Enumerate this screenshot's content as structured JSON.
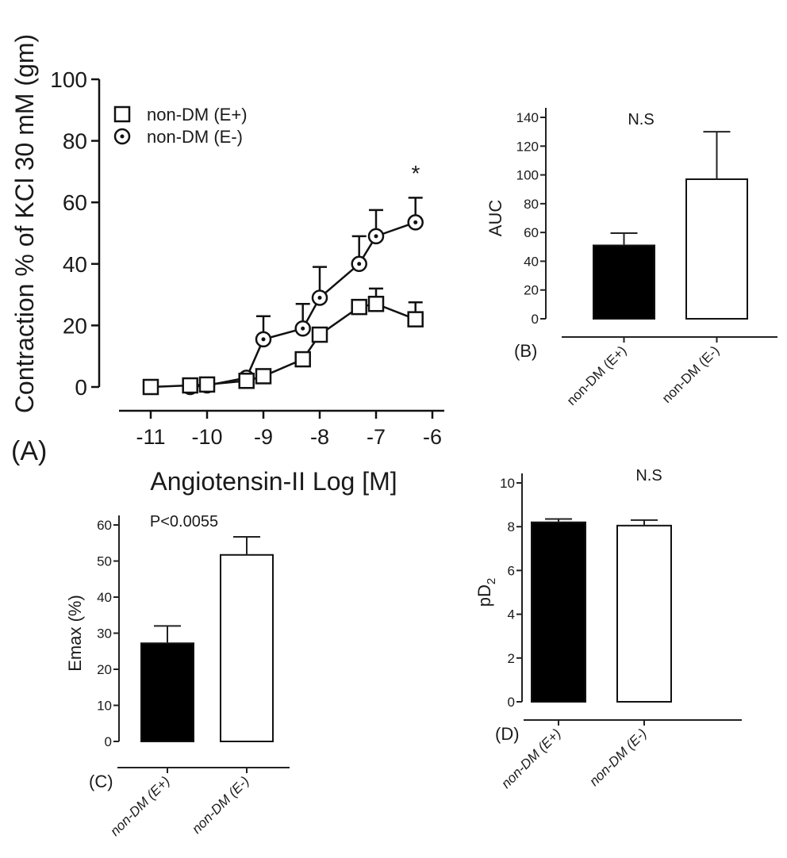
{
  "chart_data": [
    {
      "panel": "(A)",
      "type": "line",
      "xlabel": "Angiotensin-II Log [M]",
      "ylabel": "Contraction % of KCl 30 mM (gm)",
      "xlim": [
        -11.5,
        -6
      ],
      "ylim": [
        0,
        100
      ],
      "xticks": [
        -11,
        -10,
        -9,
        -8,
        -7,
        -6
      ],
      "yticks": [
        0,
        20,
        40,
        60,
        80,
        100
      ],
      "legend_position": "top-left",
      "annotation": "*",
      "series": [
        {
          "name": "non-DM (E+)",
          "marker": "open-square",
          "x": [
            -11,
            -10.3,
            -10,
            -9.3,
            -9,
            -8.3,
            -8,
            -7.3,
            -7,
            -6.3
          ],
          "y": [
            0,
            0.5,
            0.8,
            2,
            3.5,
            9,
            17,
            26,
            27,
            22
          ],
          "err": [
            null,
            null,
            null,
            null,
            null,
            null,
            null,
            28,
            32,
            27.5
          ]
        },
        {
          "name": "non-DM (E-)",
          "marker": "circle-dot",
          "x": [
            -10.3,
            -10,
            -9.3,
            -9,
            -8.3,
            -8,
            -7.3,
            -7,
            -6.3
          ],
          "y": [
            0,
            0.5,
            3,
            15.5,
            19,
            29,
            40,
            49,
            53.5
          ],
          "err": [
            null,
            null,
            null,
            23,
            27,
            39,
            49,
            57.5,
            61.5
          ]
        }
      ]
    },
    {
      "panel": "(B)",
      "type": "bar",
      "ylabel": "AUC",
      "annotation": "N.S",
      "categories": [
        "non-DM (E+)",
        "non-DM (E-)"
      ],
      "values": [
        51,
        97
      ],
      "err_top": [
        59.5,
        130
      ],
      "fills": [
        "#000000",
        "#ffffff"
      ],
      "ylim": [
        0,
        140
      ],
      "yticks": [
        0,
        20,
        40,
        60,
        80,
        100,
        120,
        140
      ]
    },
    {
      "panel": "(C)",
      "type": "bar",
      "ylabel": "Emax (%)",
      "annotation": "P<0.0055",
      "categories": [
        "non-DM (E+)",
        "non-DM (E-)"
      ],
      "values": [
        27.2,
        51.7
      ],
      "err_top": [
        32,
        56.7
      ],
      "fills": [
        "#000000",
        "#ffffff"
      ],
      "ylim": [
        0,
        60
      ],
      "yticks": [
        0,
        10,
        20,
        30,
        40,
        50,
        60
      ]
    },
    {
      "panel": "(D)",
      "type": "bar",
      "ylabel": "pD",
      "ylabel_sub": "2",
      "annotation": "N.S",
      "categories": [
        "non-DM (E+)",
        "non-DM (E-)"
      ],
      "values": [
        8.2,
        8.05
      ],
      "err_top": [
        8.35,
        8.3
      ],
      "fills": [
        "#000000",
        "#ffffff"
      ],
      "ylim": [
        0,
        10
      ],
      "yticks": [
        0,
        2,
        4,
        6,
        8,
        10
      ]
    }
  ]
}
